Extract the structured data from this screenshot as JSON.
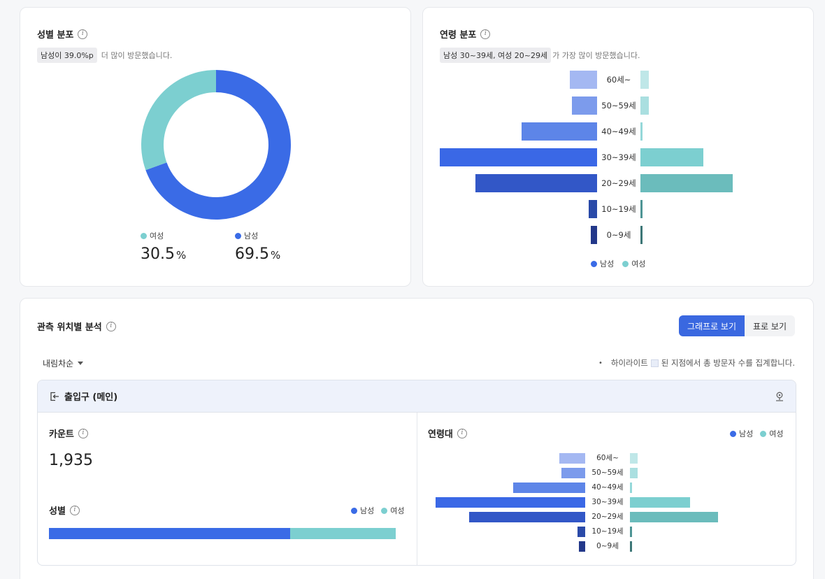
{
  "gender_card": {
    "title": "성별 분포",
    "summary_highlight": "남성이 39.0%p",
    "summary_text": "더 많이 방문했습니다.",
    "female": {
      "label": "여성",
      "value": "30.5",
      "unit": "%"
    },
    "male": {
      "label": "남성",
      "value": "69.5",
      "unit": "%"
    }
  },
  "age_card": {
    "title": "연령 분포",
    "summary_highlight": "남성 30~39세, 여성 20~29세",
    "summary_text": "가 가장 많이 방문했습니다.",
    "legend": {
      "male": "남성",
      "female": "여성"
    }
  },
  "location_section": {
    "title": "관측 위치별 분석",
    "view_graph": "그래프로 보기",
    "view_table": "표로 보기",
    "sort_label": "내림차순",
    "note_before": "하이라이트",
    "note_after": "된 지점에서 총 방문자 수를 집계합니다.",
    "location": {
      "name": "출입구 (메인)",
      "count_title": "카운트",
      "count_value": "1,935",
      "gender_title": "성별",
      "age_title": "연령대",
      "legend": {
        "male": "남성",
        "female": "여성"
      }
    }
  },
  "colors": {
    "male": "#3a6be6",
    "female": "#7ccfd0"
  },
  "chart_data": [
    {
      "type": "pie",
      "categories": [
        "남성",
        "여성"
      ],
      "values": [
        69.5,
        30.5
      ]
    },
    {
      "type": "bar",
      "orientation": "horizontal-butterfly",
      "categories": [
        "60세~",
        "50~59세",
        "40~49세",
        "30~39세",
        "20~29세",
        "10~19세",
        "0~9세"
      ],
      "series": [
        {
          "name": "남성",
          "values": [
            13,
            12,
            36,
            75,
            58,
            4,
            3
          ]
        },
        {
          "name": "여성",
          "values": [
            4,
            4,
            1,
            30,
            44,
            1,
            1
          ]
        }
      ]
    },
    {
      "type": "bar",
      "orientation": "stacked-horizontal",
      "categories": [
        "성별"
      ],
      "series": [
        {
          "name": "남성",
          "values": [
            69.5
          ]
        },
        {
          "name": "여성",
          "values": [
            30.5
          ]
        }
      ]
    },
    {
      "type": "bar",
      "orientation": "horizontal-butterfly",
      "categories": [
        "60세~",
        "50~59세",
        "40~49세",
        "30~39세",
        "20~29세",
        "10~19세",
        "0~9세"
      ],
      "series": [
        {
          "name": "남성",
          "values": [
            13,
            12,
            36,
            75,
            58,
            4,
            3
          ]
        },
        {
          "name": "여성",
          "values": [
            4,
            4,
            1,
            30,
            44,
            1,
            1
          ]
        }
      ]
    }
  ]
}
